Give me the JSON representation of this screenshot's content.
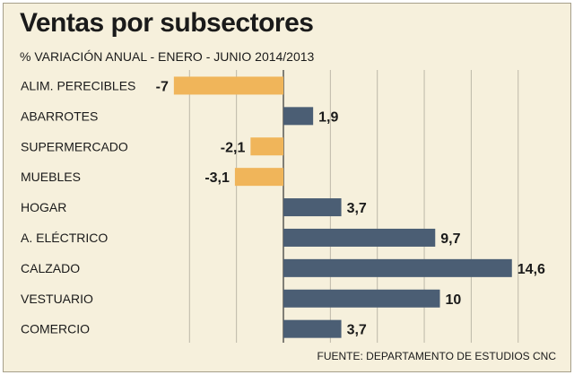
{
  "chart_data": {
    "type": "bar",
    "orientation": "horizontal",
    "title": "Ventas por subsectores",
    "subtitle": "% VARIACIÓN ANUAL - ENERO - JUNIO 2014/2013",
    "source": "FUENTE: DEPARTAMENTO DE ESTUDIOS CNC",
    "categories": [
      "ALIM. PERECIBLES",
      "ABARROTES",
      "SUPERMERCADO",
      "MUEBLES",
      "HOGAR",
      "A. ELÉCTRICO",
      "CALZADO",
      "VESTUARIO",
      "COMERCIO"
    ],
    "values": [
      -7,
      1.9,
      -2.1,
      -3.1,
      3.7,
      9.7,
      14.6,
      10,
      3.7
    ],
    "value_labels": [
      "-7",
      "1,9",
      "-2,1",
      "-3,1",
      "3,7",
      "9,7",
      "14,6",
      "10",
      "3,7"
    ],
    "xlim": [
      -9,
      15
    ],
    "grid": true,
    "colors": {
      "negative": "#f0b55a",
      "positive": "#4b5e74",
      "background": "#f6f0dc",
      "grid": "#bdb8a8"
    }
  }
}
